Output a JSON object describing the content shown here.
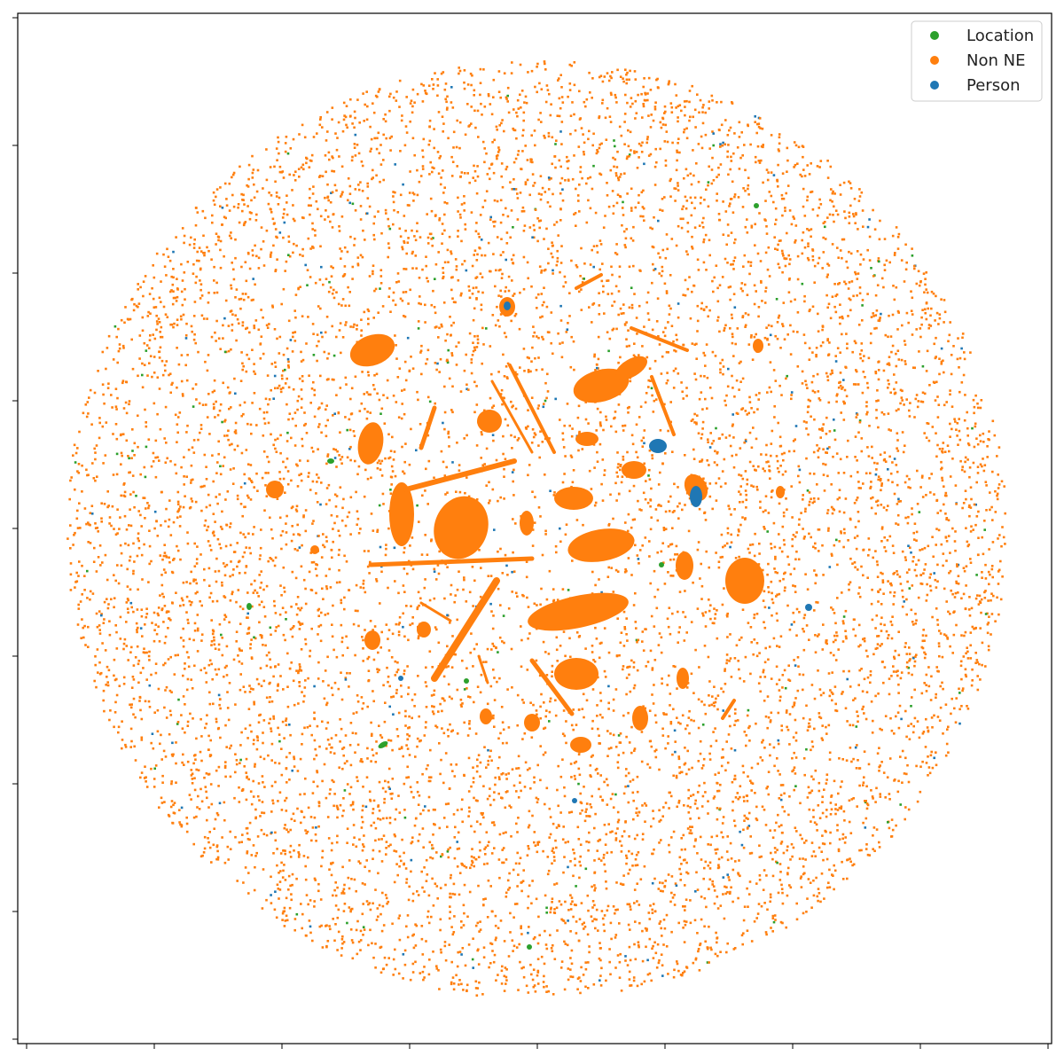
{
  "chart_data": {
    "type": "scatter",
    "title": "",
    "xlabel": "",
    "ylabel": "",
    "grid": false,
    "legend_position": "top-right",
    "series": [
      {
        "name": "Location",
        "color": "#2ca02c"
      },
      {
        "name": "Non NE",
        "color": "#ff7f0e"
      },
      {
        "name": "Person",
        "color": "#1f77b4"
      }
    ]
  }
}
